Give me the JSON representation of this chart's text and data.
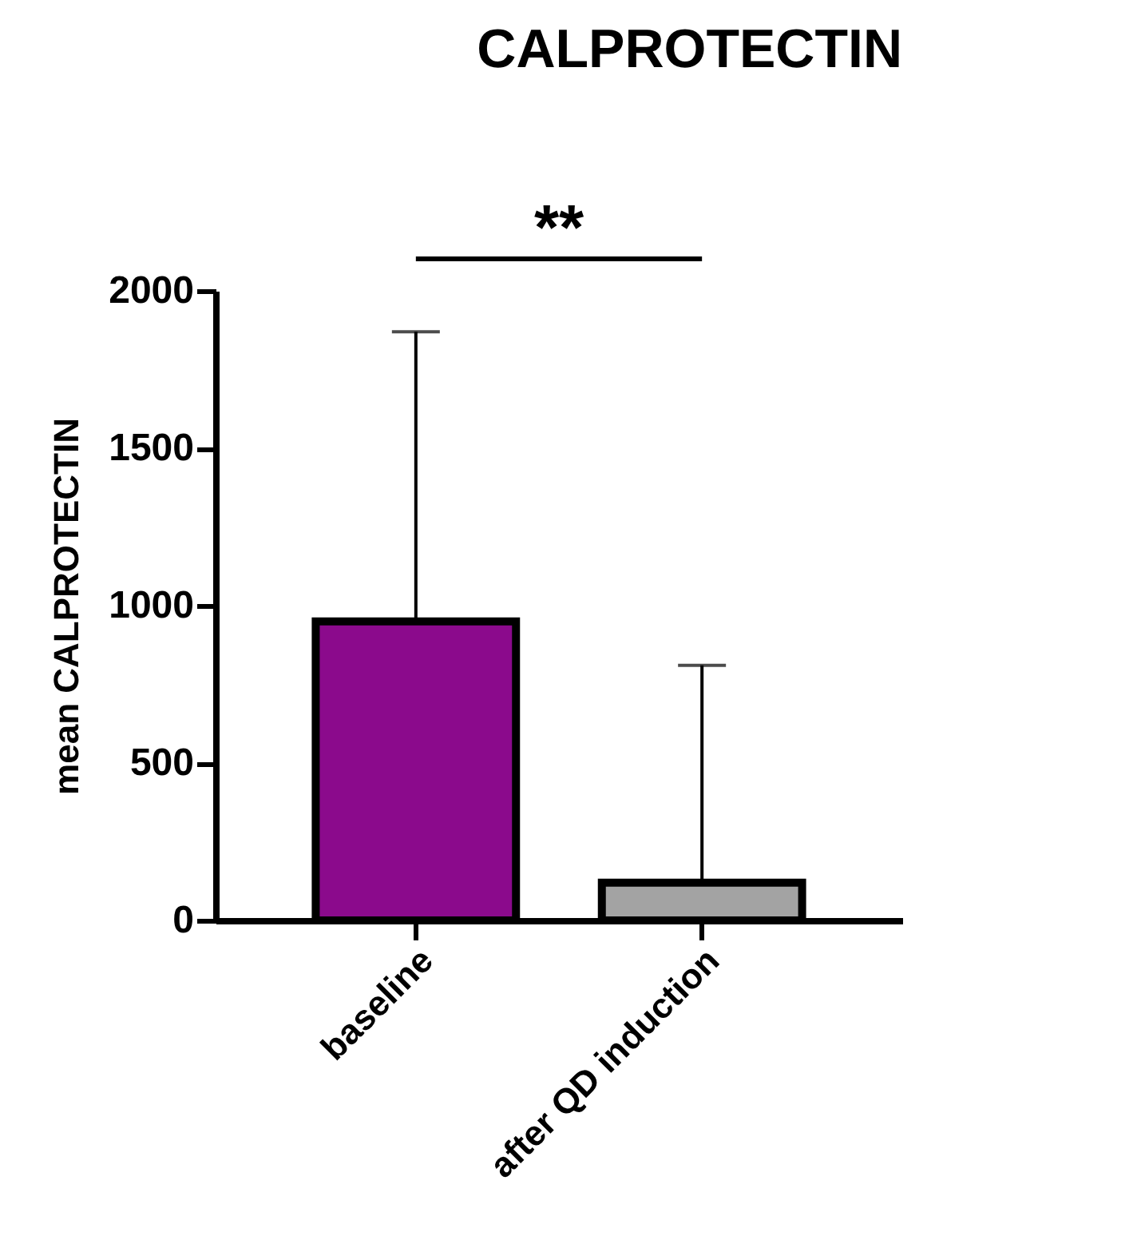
{
  "chart_data": {
    "type": "bar",
    "title": "CALPROTECTIN",
    "ylabel": "mean CALPROTECTIN",
    "categories": [
      "baseline",
      "after QD induction"
    ],
    "values": [
      950,
      120
    ],
    "colors": [
      "#8b0a8c",
      "#a3a3a3"
    ],
    "errors": [
      [
        950,
        1870
      ],
      [
        120,
        810
      ]
    ],
    "ylim": [
      0,
      2000
    ],
    "yticks": [
      0,
      500,
      1000,
      1500,
      2000
    ],
    "grid": false,
    "annotations": [
      "**"
    ]
  }
}
